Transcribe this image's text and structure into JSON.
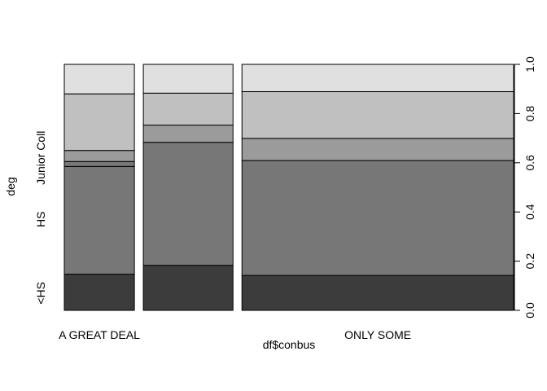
{
  "chart_data": {
    "type": "bar",
    "subtype": "spineplot",
    "xlabel": "df$conbus",
    "ylabel": "deg",
    "categories": [
      "A GREAT DEAL",
      "",
      "ONLY SOME"
    ],
    "category_widths": [
      0.258,
      0.33,
      1.0
    ],
    "levels": [
      "<HS",
      "HS",
      "Junior Coll",
      "",
      ""
    ],
    "left_axis_labels": [
      {
        "text": "<HS",
        "y": 0.07
      },
      {
        "text": "HS",
        "y": 0.37
      },
      {
        "text": "Junior Coll",
        "y": 0.62
      }
    ],
    "series": [
      {
        "name": "<HS",
        "values": [
          0.147,
          0.183,
          0.142
        ]
      },
      {
        "name": "HS",
        "values": [
          0.438,
          0.5,
          0.467
        ]
      },
      {
        "name": "Junior Coll",
        "values": [
          0.02,
          0.0,
          0.0
        ]
      },
      {
        "name": "",
        "values": [
          0.045,
          0.07,
          0.09
        ]
      },
      {
        "name": "",
        "values": [
          0.23,
          0.13,
          0.19
        ]
      },
      {
        "name": "",
        "values": [
          0.12,
          0.117,
          0.111
        ]
      }
    ],
    "fills": [
      "#3c3c3c",
      "#777777",
      "#777777",
      "#9b9b9b",
      "#c0c0c0",
      "#e0e0e0"
    ],
    "ylim": [
      0,
      1
    ],
    "yticks": [
      0,
      0.2,
      0.4,
      0.6,
      0.8,
      1
    ],
    "ytick_labels": [
      "0.0",
      "0.2",
      "0.4",
      "0.6",
      "0.8",
      "1.0"
    ],
    "grid": false,
    "legend": "none"
  }
}
